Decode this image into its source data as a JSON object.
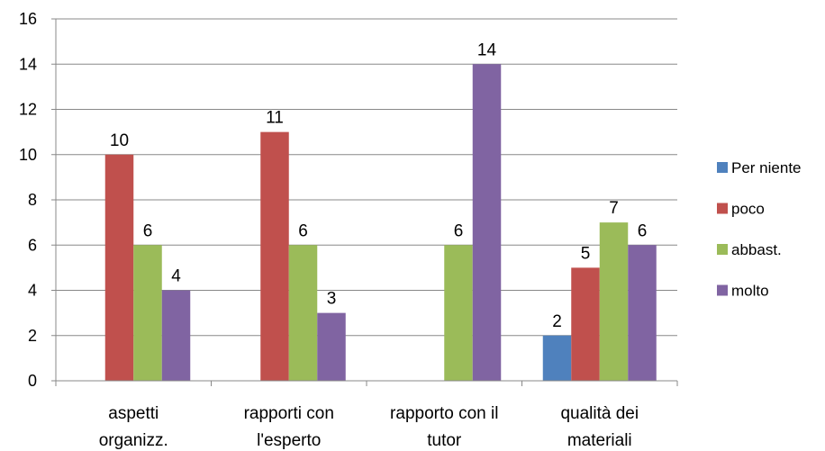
{
  "chart_data": {
    "type": "bar",
    "categories": [
      [
        "aspetti",
        "organizz."
      ],
      [
        "rapporti con",
        "l'esperto"
      ],
      [
        "rapporto con il",
        "tutor"
      ],
      [
        "qualità dei",
        "materiali"
      ]
    ],
    "series": [
      {
        "name": "Per niente",
        "color": "#4f81bd",
        "values": [
          null,
          null,
          null,
          2
        ]
      },
      {
        "name": "poco",
        "color": "#c0504d",
        "values": [
          10,
          11,
          null,
          5
        ]
      },
      {
        "name": "abbast.",
        "color": "#9bbb59",
        "values": [
          6,
          6,
          6,
          7
        ]
      },
      {
        "name": "molto",
        "color": "#8064a2",
        "values": [
          4,
          3,
          14,
          6
        ]
      }
    ],
    "ylim": [
      0,
      16
    ],
    "yticks": [
      0,
      2,
      4,
      6,
      8,
      10,
      12,
      14,
      16
    ],
    "grid": true,
    "legend_position": "right",
    "title": "",
    "xlabel": "",
    "ylabel": ""
  }
}
